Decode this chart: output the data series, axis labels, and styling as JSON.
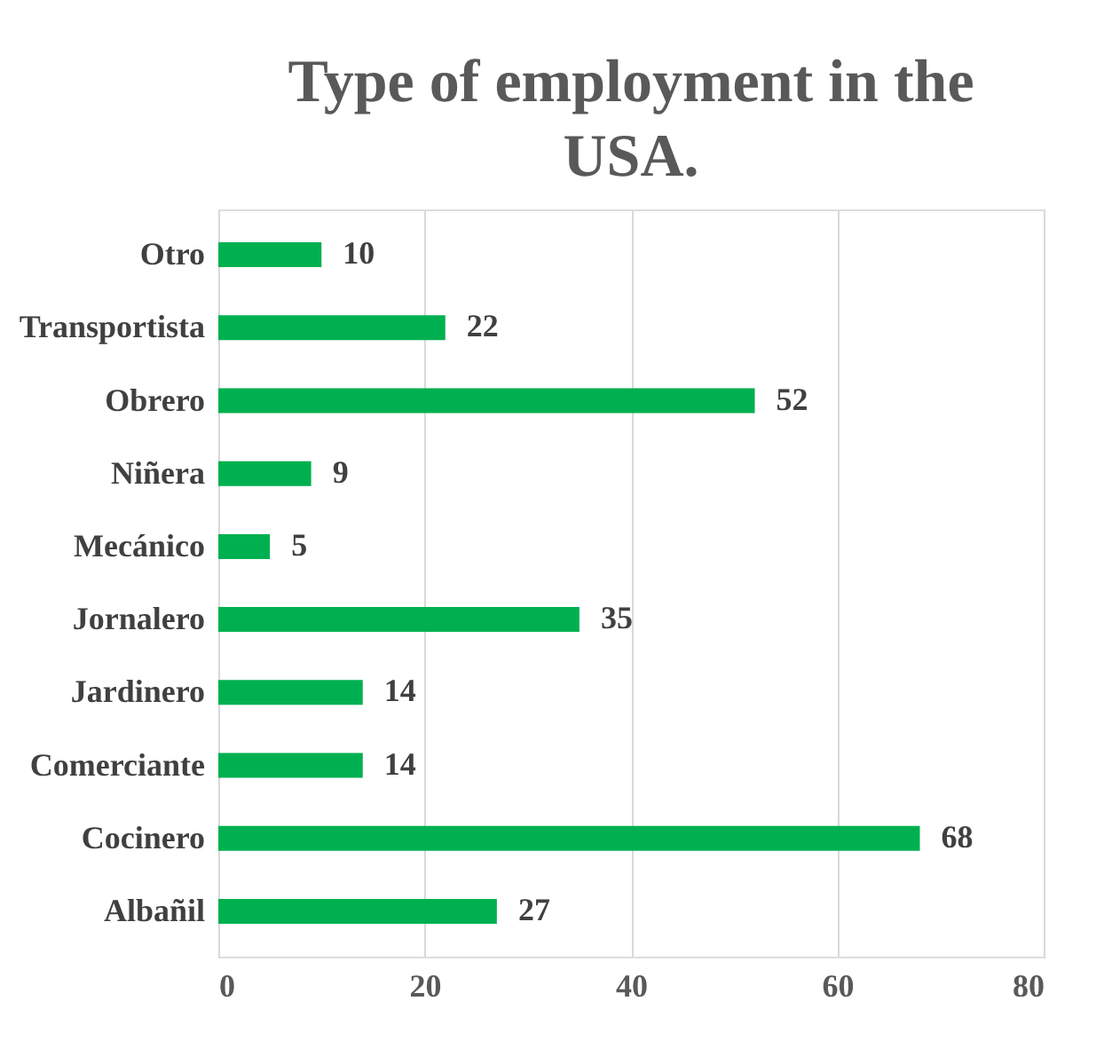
{
  "chart_data": {
    "type": "bar",
    "orientation": "horizontal",
    "title": "Type of employment in the USA.",
    "categories": [
      "Otro",
      "Transportista",
      "Obrero",
      "Niñera",
      "Mecánico",
      "Jornalero",
      "Jardinero",
      "Comerciante",
      "Cocinero",
      "Albañil"
    ],
    "values": [
      10,
      22,
      52,
      9,
      5,
      35,
      14,
      14,
      68,
      27
    ],
    "color": "#00b050",
    "xlim": [
      0,
      80
    ],
    "xticks": [
      0,
      20,
      40,
      60,
      80
    ],
    "grid": "x",
    "data_labels": true
  }
}
